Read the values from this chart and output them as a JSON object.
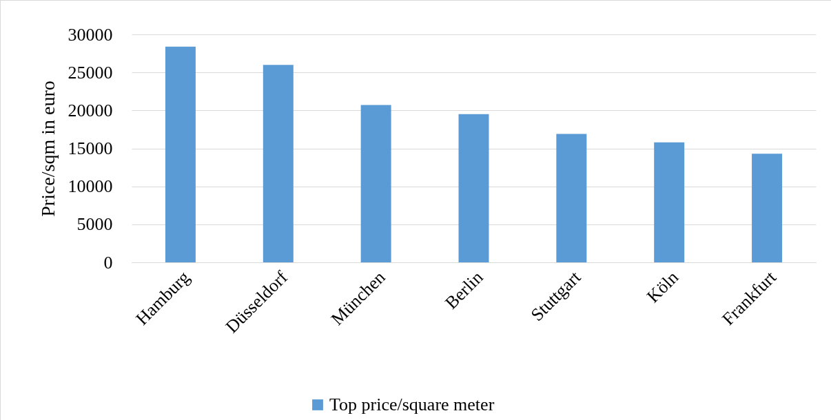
{
  "chart_data": {
    "type": "bar",
    "ylabel": "Price/sqm in euro",
    "categories": [
      "Hamburg",
      "Düsseldorf",
      "München",
      "Berlin",
      "Stuttgart",
      "Köln",
      "Frankfurt"
    ],
    "series": [
      {
        "name": "Top price/square meter",
        "color": "#5b9bd5",
        "values": [
          28400,
          26000,
          20700,
          19500,
          16900,
          15800,
          14300
        ]
      }
    ],
    "ylim": [
      0,
      30000
    ],
    "yticks": [
      0,
      5000,
      10000,
      15000,
      20000,
      25000,
      30000
    ],
    "grid": "y",
    "legend": "bottom"
  }
}
